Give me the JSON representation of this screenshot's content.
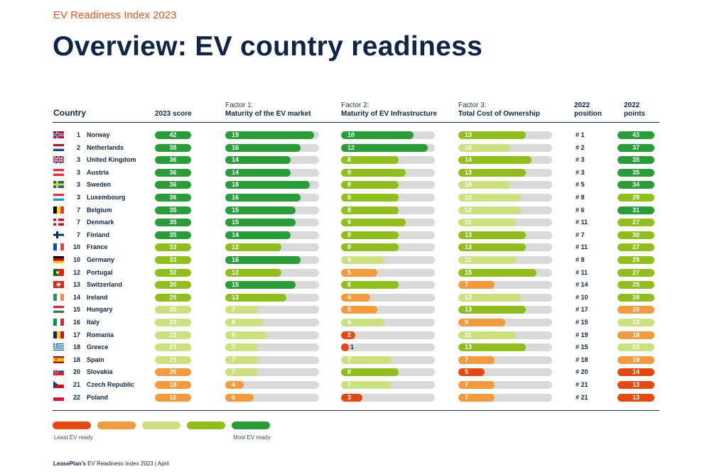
{
  "supertitle": "EV Readiness Index 2023",
  "title": "Overview: EV country readiness",
  "headers": {
    "country": "Country",
    "score": "2023 score",
    "f1_line1": "Factor 1:",
    "f1_line2": "Maturity of the EV market",
    "f2_line1": "Factor 2:",
    "f2_line2": "Maturity of EV Infrastructure",
    "f3_line1": "Factor 3:",
    "f3_line2": "Total Cost of Ownership",
    "pos_line1": "2022",
    "pos_line2": "position",
    "pts_line1": "2022",
    "pts_line2": "points"
  },
  "legend": {
    "least": "Least EV ready",
    "most": "Most EV ready",
    "colors": [
      "#e24a12",
      "#f19a3e",
      "#cbe07e",
      "#8fbe1e",
      "#2a9c3a"
    ]
  },
  "footer": {
    "brand": "LeasePlan's",
    "text": "EV Readiness Index 2023 | April"
  },
  "chart_data": {
    "type": "table",
    "columns": [
      "Country",
      "2023 score",
      "Maturity of the EV market",
      "Maturity of EV Infrastructure",
      "Total Cost of Ownership",
      "2022 position",
      "2022 points"
    ],
    "rows": [
      {
        "rank": "1",
        "country": "Norway",
        "flag": "norway",
        "score": "42",
        "score_color": "#2a9c3a",
        "f1": 19,
        "f1_color": "#2a9c3a",
        "f2": 10,
        "f2_color": "#2a9c3a",
        "f3": 13,
        "f3_color": "#8fbe1e",
        "pos": "# 1",
        "pts": "43",
        "pts_color": "#2a9c3a"
      },
      {
        "rank": "2",
        "country": "Netherlands",
        "flag": "netherlands",
        "score": "38",
        "score_color": "#2a9c3a",
        "f1": 16,
        "f1_color": "#2a9c3a",
        "f2": 12,
        "f2_color": "#2a9c3a",
        "f3": 10,
        "f3_color": "#cbe07e",
        "pos": "# 2",
        "pts": "37",
        "pts_color": "#2a9c3a"
      },
      {
        "rank": "3",
        "country": "United Kingdom",
        "flag": "uk",
        "score": "36",
        "score_color": "#2a9c3a",
        "f1": 14,
        "f1_color": "#2a9c3a",
        "f2": 8,
        "f2_color": "#8fbe1e",
        "f3": 14,
        "f3_color": "#8fbe1e",
        "pos": "# 3",
        "pts": "35",
        "pts_color": "#2a9c3a"
      },
      {
        "rank": "3",
        "country": "Austria",
        "flag": "austria",
        "score": "36",
        "score_color": "#2a9c3a",
        "f1": 14,
        "f1_color": "#2a9c3a",
        "f2": 9,
        "f2_color": "#8fbe1e",
        "f3": 13,
        "f3_color": "#8fbe1e",
        "pos": "# 3",
        "pts": "35",
        "pts_color": "#2a9c3a"
      },
      {
        "rank": "3",
        "country": "Sweden",
        "flag": "sweden",
        "score": "36",
        "score_color": "#2a9c3a",
        "f1": 18,
        "f1_color": "#2a9c3a",
        "f2": 8,
        "f2_color": "#8fbe1e",
        "f3": 10,
        "f3_color": "#cbe07e",
        "pos": "# 5",
        "pts": "34",
        "pts_color": "#2a9c3a"
      },
      {
        "rank": "3",
        "country": "Luxembourg",
        "flag": "luxembourg",
        "score": "36",
        "score_color": "#2a9c3a",
        "f1": 16,
        "f1_color": "#2a9c3a",
        "f2": 8,
        "f2_color": "#8fbe1e",
        "f3": 12,
        "f3_color": "#cbe07e",
        "pos": "# 8",
        "pts": "29",
        "pts_color": "#8fbe1e"
      },
      {
        "rank": "7",
        "country": "Belgium",
        "flag": "belgium",
        "score": "35",
        "score_color": "#2a9c3a",
        "f1": 15,
        "f1_color": "#2a9c3a",
        "f2": 8,
        "f2_color": "#8fbe1e",
        "f3": 12,
        "f3_color": "#cbe07e",
        "pos": "# 6",
        "pts": "31",
        "pts_color": "#2a9c3a"
      },
      {
        "rank": "7",
        "country": "Denmark",
        "flag": "denmark",
        "score": "35",
        "score_color": "#2a9c3a",
        "f1": 15,
        "f1_color": "#2a9c3a",
        "f2": 9,
        "f2_color": "#8fbe1e",
        "f3": 11,
        "f3_color": "#cbe07e",
        "pos": "# 11",
        "pts": "27",
        "pts_color": "#8fbe1e"
      },
      {
        "rank": "7",
        "country": "Finland",
        "flag": "finland",
        "score": "35",
        "score_color": "#2a9c3a",
        "f1": 14,
        "f1_color": "#2a9c3a",
        "f2": 8,
        "f2_color": "#8fbe1e",
        "f3": 13,
        "f3_color": "#8fbe1e",
        "pos": "# 7",
        "pts": "30",
        "pts_color": "#8fbe1e"
      },
      {
        "rank": "10",
        "country": "France",
        "flag": "france",
        "score": "33",
        "score_color": "#8fbe1e",
        "f1": 12,
        "f1_color": "#8fbe1e",
        "f2": 8,
        "f2_color": "#8fbe1e",
        "f3": 13,
        "f3_color": "#8fbe1e",
        "pos": "# 11",
        "pts": "27",
        "pts_color": "#8fbe1e"
      },
      {
        "rank": "10",
        "country": "Germany",
        "flag": "germany",
        "score": "33",
        "score_color": "#8fbe1e",
        "f1": 16,
        "f1_color": "#2a9c3a",
        "f2": 6,
        "f2_color": "#cbe07e",
        "f3": 11,
        "f3_color": "#cbe07e",
        "pos": "# 8",
        "pts": "29",
        "pts_color": "#8fbe1e"
      },
      {
        "rank": "12",
        "country": "Portugal",
        "flag": "portugal",
        "score": "32",
        "score_color": "#8fbe1e",
        "f1": 12,
        "f1_color": "#8fbe1e",
        "f2": 5,
        "f2_color": "#f19a3e",
        "f3": 15,
        "f3_color": "#8fbe1e",
        "pos": "# 11",
        "pts": "27",
        "pts_color": "#8fbe1e"
      },
      {
        "rank": "13",
        "country": "Switzerland",
        "flag": "switzerland",
        "score": "30",
        "score_color": "#8fbe1e",
        "f1": 15,
        "f1_color": "#2a9c3a",
        "f2": 8,
        "f2_color": "#8fbe1e",
        "f3": 7,
        "f3_color": "#f19a3e",
        "pos": "# 14",
        "pts": "25",
        "pts_color": "#8fbe1e"
      },
      {
        "rank": "14",
        "country": "Ireland",
        "flag": "ireland",
        "score": "29",
        "score_color": "#8fbe1e",
        "f1": 13,
        "f1_color": "#8fbe1e",
        "f2": 4,
        "f2_color": "#f19a3e",
        "f3": 12,
        "f3_color": "#cbe07e",
        "pos": "# 10",
        "pts": "28",
        "pts_color": "#8fbe1e"
      },
      {
        "rank": "15",
        "country": "Hungary",
        "flag": "hungary",
        "score": "25",
        "score_color": "#cbe07e",
        "f1": 7,
        "f1_color": "#cbe07e",
        "f2": 5,
        "f2_color": "#f19a3e",
        "f3": 13,
        "f3_color": "#8fbe1e",
        "pos": "# 17",
        "pts": "20",
        "pts_color": "#f19a3e"
      },
      {
        "rank": "16",
        "country": "Italy",
        "flag": "italy",
        "score": "23",
        "score_color": "#cbe07e",
        "f1": 8,
        "f1_color": "#cbe07e",
        "f2": 6,
        "f2_color": "#cbe07e",
        "f3": 9,
        "f3_color": "#f19a3e",
        "pos": "# 15",
        "pts": "23",
        "pts_color": "#cbe07e"
      },
      {
        "rank": "17",
        "country": "Romania",
        "flag": "romania",
        "score": "22",
        "score_color": "#cbe07e",
        "f1": 9,
        "f1_color": "#cbe07e",
        "f2": 2,
        "f2_color": "#e24a12",
        "f3": 11,
        "f3_color": "#cbe07e",
        "pos": "# 19",
        "pts": "18",
        "pts_color": "#f19a3e"
      },
      {
        "rank": "18",
        "country": "Greece",
        "flag": "greece",
        "score": "21",
        "score_color": "#cbe07e",
        "f1": 7,
        "f1_color": "#cbe07e",
        "f2": 1,
        "f2_color": "#e24a12",
        "f3": 13,
        "f3_color": "#8fbe1e",
        "pos": "# 15",
        "pts": "23",
        "pts_color": "#cbe07e"
      },
      {
        "rank": "18",
        "country": "Spain",
        "flag": "spain",
        "score": "21",
        "score_color": "#cbe07e",
        "f1": 7,
        "f1_color": "#cbe07e",
        "f2": 7,
        "f2_color": "#cbe07e",
        "f3": 7,
        "f3_color": "#f19a3e",
        "pos": "# 18",
        "pts": "19",
        "pts_color": "#f19a3e"
      },
      {
        "rank": "20",
        "country": "Slovakia",
        "flag": "slovakia",
        "score": "20",
        "score_color": "#f19a3e",
        "f1": 7,
        "f1_color": "#cbe07e",
        "f2": 8,
        "f2_color": "#8fbe1e",
        "f3": 5,
        "f3_color": "#e24a12",
        "pos": "# 20",
        "pts": "14",
        "pts_color": "#e24a12"
      },
      {
        "rank": "21",
        "country": "Czech Republic",
        "flag": "czech",
        "score": "18",
        "score_color": "#f19a3e",
        "f1": 4,
        "f1_color": "#f19a3e",
        "f2": 7,
        "f2_color": "#cbe07e",
        "f3": 7,
        "f3_color": "#f19a3e",
        "pos": "# 21",
        "pts": "13",
        "pts_color": "#e24a12"
      },
      {
        "rank": "22",
        "country": "Poland",
        "flag": "poland",
        "score": "16",
        "score_color": "#f19a3e",
        "f1": 6,
        "f1_color": "#f19a3e",
        "f2": 3,
        "f2_color": "#e24a12",
        "f3": 7,
        "f3_color": "#f19a3e",
        "pos": "# 21",
        "pts": "13",
        "pts_color": "#e24a12"
      }
    ]
  }
}
